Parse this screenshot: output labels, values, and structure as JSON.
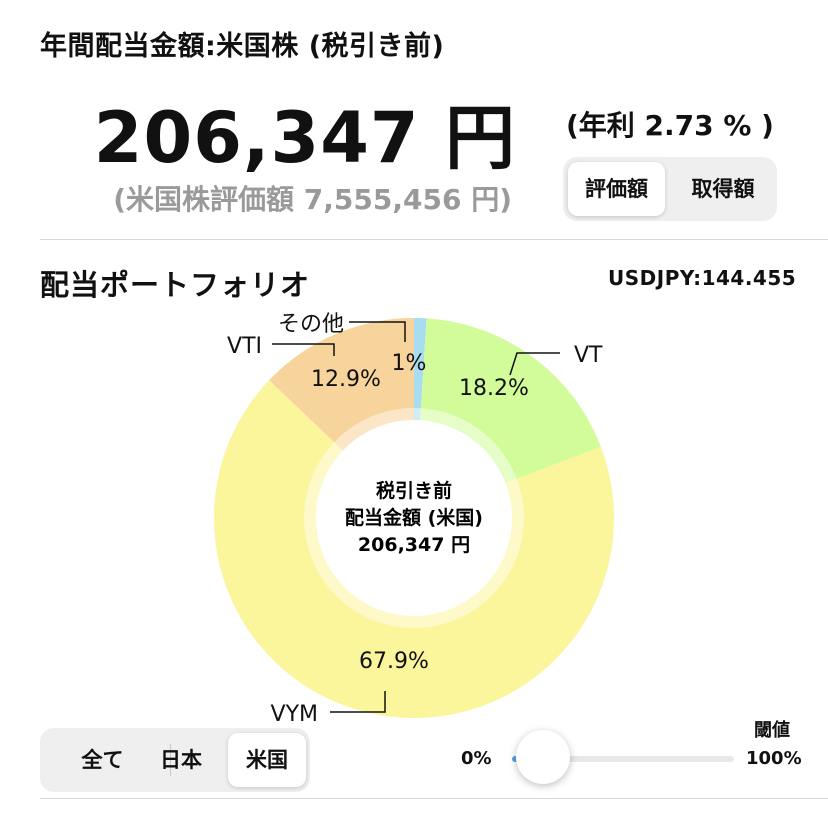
{
  "header": {
    "title": "年間配当金額:米国株 (税引き前)",
    "total": "206,347 円",
    "yield": "(年利 2.73 % )",
    "market_value": "(米国株評価額 7,555,456 円)"
  },
  "basis_toggle": {
    "options": [
      "評価額",
      "取得額"
    ],
    "selected": "評価額"
  },
  "portfolio": {
    "title": "配当ポートフォリオ",
    "fx_rate": "USDJPY:144.455",
    "center_label": [
      "税引き前",
      "配当金額 (米国)",
      "206,347 円"
    ]
  },
  "chart_data": {
    "type": "pie",
    "categories": [
      "その他",
      "VT",
      "VYM",
      "VTI"
    ],
    "values": [
      1.0,
      18.2,
      67.9,
      12.9
    ],
    "labels": [
      "1%",
      "18.2%",
      "67.9%",
      "12.9%"
    ],
    "colors": [
      "#a8dcf0",
      "#d2fb99",
      "#fbf59c",
      "#f7d49c"
    ]
  },
  "region_tabs": {
    "options": [
      "全て",
      "日本",
      "米国"
    ],
    "selected": "米国"
  },
  "threshold": {
    "label": "閾値",
    "min_label": "0%",
    "max_label": "100%",
    "value": 0.0
  }
}
